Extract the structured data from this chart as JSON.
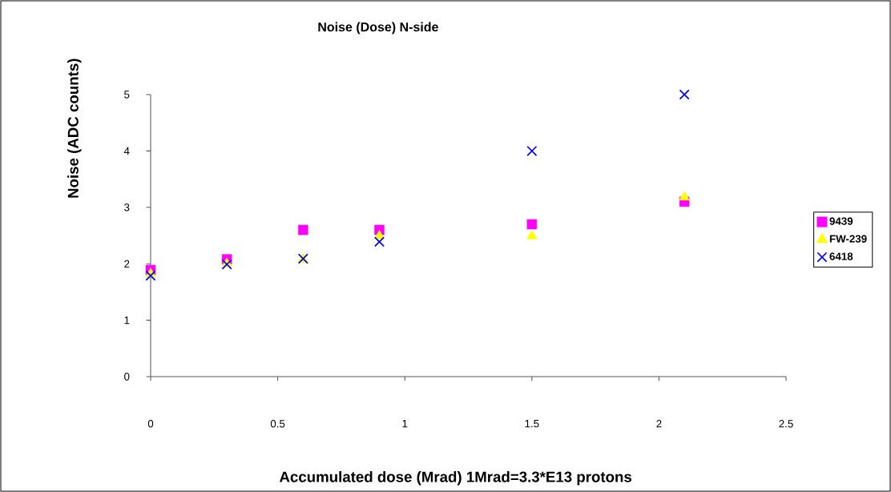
{
  "chart_data": {
    "type": "scatter",
    "title": "Noise (Dose) N-side",
    "xlabel": "Accumulated dose (Mrad) 1Mrad=3.3*E13 protons",
    "ylabel": "Noise (ADC counts)",
    "x": [
      0,
      0.3,
      0.6,
      0.9,
      1.5,
      2.1
    ],
    "series": [
      {
        "name": "9439",
        "color": "#ff00ff",
        "marker": "square",
        "values": [
          1.89,
          2.08,
          2.6,
          2.6,
          2.7,
          3.1
        ]
      },
      {
        "name": "FW-239",
        "color": "#ffff00",
        "marker": "triangle",
        "values": [
          1.82,
          2.0,
          2.08,
          2.49,
          2.49,
          3.18
        ]
      },
      {
        "name": "6418",
        "color": "#0000ff",
        "marker": "cross",
        "values": [
          1.79,
          1.99,
          2.09,
          2.39,
          4.0,
          5.0
        ]
      }
    ],
    "xlim": [
      0,
      2.5
    ],
    "xticks": [
      0,
      0.5,
      1,
      1.5,
      2,
      2.5
    ],
    "ylim": [
      0,
      5
    ],
    "yticks": [
      0,
      1,
      2,
      3,
      4,
      5
    ],
    "grid": false,
    "legend": "right"
  }
}
